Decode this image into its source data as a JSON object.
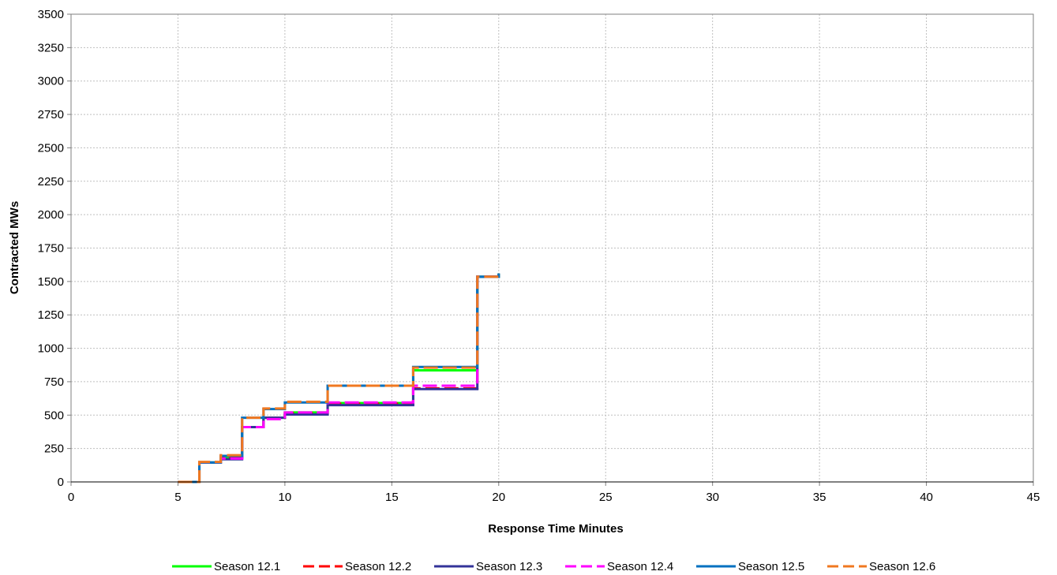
{
  "chart_data": {
    "type": "line",
    "title": "",
    "xlabel": "Response Time Minutes",
    "ylabel": "Contracted MWs",
    "xlim": [
      0,
      45
    ],
    "ylim": [
      0,
      3500
    ],
    "xticks": [
      0,
      5,
      10,
      15,
      20,
      25,
      30,
      35,
      40,
      45
    ],
    "yticks": [
      0,
      250,
      500,
      750,
      1000,
      1250,
      1500,
      1750,
      2000,
      2250,
      2500,
      2750,
      3000,
      3250,
      3500
    ],
    "grid": true,
    "legend_position": "bottom",
    "step": true,
    "series": [
      {
        "name": "Season 12.1",
        "color": "#00ff00",
        "dash": "solid",
        "x": [
          5,
          6,
          7,
          8,
          9,
          10,
          12,
          16,
          19,
          20
        ],
        "y": [
          0,
          145,
          180,
          410,
          480,
          520,
          590,
          835,
          1535,
          1560
        ]
      },
      {
        "name": "Season 12.2",
        "color": "#ff0000",
        "dash": "dashed",
        "x": [
          5,
          6,
          7,
          8,
          9,
          10,
          12,
          16,
          19,
          20
        ],
        "y": [
          0,
          145,
          185,
          410,
          480,
          515,
          585,
          700,
          1535,
          1560
        ]
      },
      {
        "name": "Season 12.3",
        "color": "#333399",
        "dash": "solid",
        "x": [
          5,
          6,
          7,
          8,
          9,
          10,
          12,
          16,
          19,
          20
        ],
        "y": [
          0,
          145,
          170,
          410,
          480,
          505,
          575,
          695,
          1535,
          1560
        ]
      },
      {
        "name": "Season 12.4",
        "color": "#ff00ff",
        "dash": "dashed",
        "x": [
          5,
          6,
          7,
          8,
          9,
          10,
          12,
          16,
          19,
          20
        ],
        "y": [
          0,
          145,
          175,
          410,
          470,
          520,
          595,
          720,
          1535,
          1560
        ]
      },
      {
        "name": "Season 12.5",
        "color": "#0070c0",
        "dash": "solid",
        "x": [
          5,
          6,
          7,
          8,
          9,
          10,
          12,
          16,
          19,
          20
        ],
        "y": [
          0,
          145,
          195,
          480,
          545,
          595,
          720,
          860,
          1535,
          1560
        ]
      },
      {
        "name": "Season 12.6",
        "color": "#f07820",
        "dash": "dashed",
        "x": [
          5,
          6,
          7,
          8,
          9,
          10,
          12,
          16,
          19,
          20
        ],
        "y": [
          0,
          150,
          200,
          480,
          550,
          600,
          720,
          855,
          1535,
          1560
        ]
      }
    ]
  }
}
